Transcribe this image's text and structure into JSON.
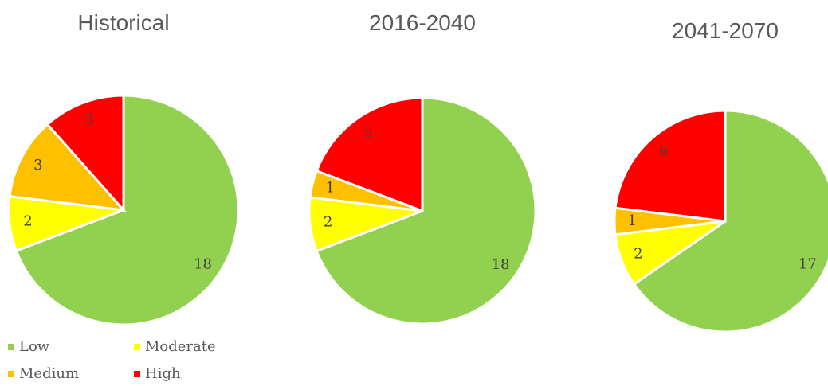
{
  "chart_data": [
    {
      "type": "pie",
      "title": "Historical",
      "values": [
        18,
        2,
        3,
        3
      ]
    },
    {
      "type": "pie",
      "title": "2016-2040",
      "values": [
        18,
        2,
        1,
        5
      ]
    },
    {
      "type": "pie",
      "title": "2041-2070",
      "values": [
        17,
        2,
        1,
        6
      ]
    }
  ],
  "legend": {
    "categories": [
      "Low",
      "Moderate",
      "Medium",
      "High"
    ],
    "colors": [
      "#92d050",
      "#ffff00",
      "#ffc000",
      "#ff0000"
    ]
  }
}
